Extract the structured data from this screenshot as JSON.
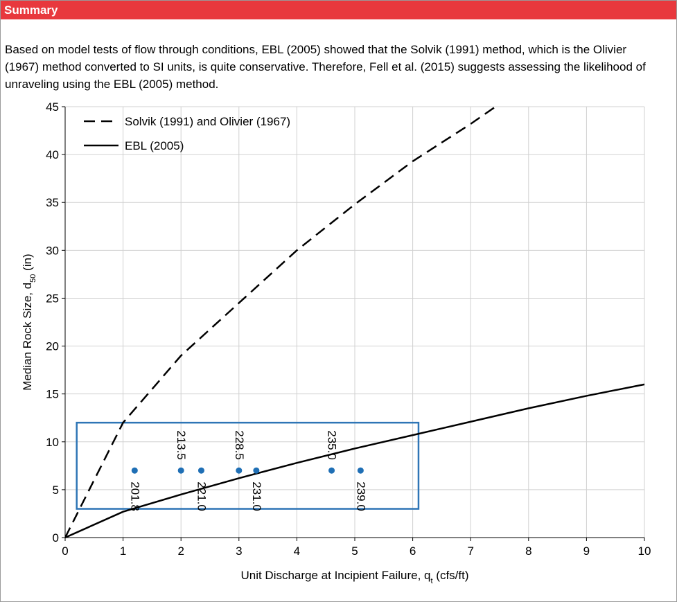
{
  "header": "Summary",
  "paragraph": "Based on model tests of flow through conditions, EBL (2005) showed that the Solvik (1991) method, which is the Olivier (1967) method converted to SI units, is quite conservative. Therefore, Fell et al. (2015) suggests assessing the likelihood of unraveling using the EBL (2005) method.",
  "chart_data": {
    "type": "line",
    "x_label": {
      "text": "Unit Discharge at Incipient Failure, q",
      "sub": "t",
      "tail": " (cfs/ft)"
    },
    "y_label": {
      "text": "Median Rock Size, d",
      "sub": "50",
      "tail": " (in)"
    },
    "xlim": [
      0,
      10
    ],
    "xticks": [
      0,
      1,
      2,
      3,
      4,
      5,
      6,
      7,
      8,
      9,
      10
    ],
    "ylim": [
      0,
      45
    ],
    "yticks": [
      0,
      5,
      10,
      15,
      20,
      25,
      30,
      35,
      40,
      45
    ],
    "grid": true,
    "legend": "top-left",
    "series": [
      {
        "name": "Solvik (1991) and Olivier (1967)",
        "color": "#000000",
        "dash": true,
        "x": [
          0,
          1,
          2,
          3,
          4,
          5,
          6,
          7,
          7.43
        ],
        "values": [
          0,
          12,
          19,
          24.5,
          30,
          34.8,
          39.3,
          43.2,
          45
        ]
      },
      {
        "name": "EBL (2005)",
        "color": "#000000",
        "dash": false,
        "x": [
          0,
          1,
          2,
          3,
          4,
          5,
          6,
          7,
          8,
          9,
          10
        ],
        "values": [
          0,
          2.7,
          4.5,
          6.2,
          7.8,
          9.3,
          10.7,
          12.1,
          13.5,
          14.8,
          16
        ]
      }
    ],
    "points": {
      "type": "scatter",
      "color": "#1f6fb5",
      "x": [
        1.2,
        2.0,
        2.35,
        3.0,
        3.3,
        4.6,
        5.1
      ],
      "values": [
        7,
        7,
        7,
        7,
        7,
        7,
        7
      ],
      "labels": [
        "201.8",
        "213.5",
        "221.0",
        "228.5",
        "231.0",
        "235.0",
        "239.0"
      ]
    },
    "box": {
      "x": [
        0.2,
        6.1
      ],
      "y": [
        3,
        12
      ],
      "color": "#2e75b6"
    }
  }
}
